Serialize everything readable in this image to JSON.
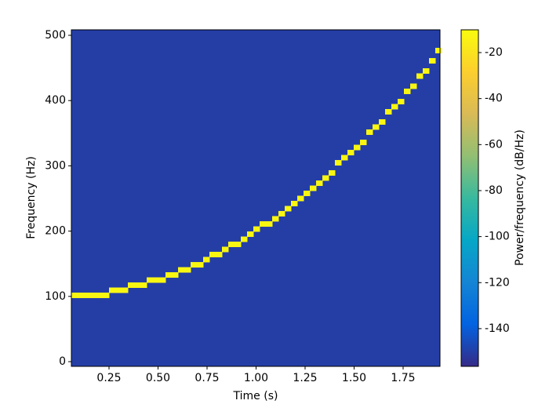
{
  "chart_data": {
    "type": "spectrogram",
    "xlabel": "Time (s)",
    "ylabel": "Frequency (Hz)",
    "colorbar_label": "Power/frequency (dB/Hz)",
    "colormap": "parula",
    "xlim": [
      0.058,
      1.938
    ],
    "ylim": [
      -7.2,
      508.4
    ],
    "clim": [
      -156.4,
      -10.1
    ],
    "xticks": [
      {
        "value": 0.25,
        "label": "0.25"
      },
      {
        "value": 0.5,
        "label": "0.50"
      },
      {
        "value": 0.75,
        "label": "0.75"
      },
      {
        "value": 1.0,
        "label": "1.00"
      },
      {
        "value": 1.25,
        "label": "1.25"
      },
      {
        "value": 1.5,
        "label": "1.50"
      },
      {
        "value": 1.75,
        "label": "1.75"
      }
    ],
    "yticks": [
      0,
      100,
      200,
      300,
      400,
      500
    ],
    "cticks": [
      -20,
      -40,
      -60,
      -80,
      -100,
      -120,
      -140
    ],
    "background_power": -150,
    "ridge_power": -12,
    "x": [
      0.074,
      0.106,
      0.138,
      0.17,
      0.202,
      0.234,
      0.266,
      0.298,
      0.33,
      0.362,
      0.394,
      0.426,
      0.458,
      0.49,
      0.522,
      0.554,
      0.586,
      0.618,
      0.65,
      0.682,
      0.714,
      0.746,
      0.778,
      0.81,
      0.842,
      0.874,
      0.906,
      0.938,
      0.97,
      1.002,
      1.034,
      1.066,
      1.098,
      1.13,
      1.162,
      1.194,
      1.226,
      1.258,
      1.29,
      1.322,
      1.354,
      1.386,
      1.418,
      1.45,
      1.482,
      1.514,
      1.546,
      1.578,
      1.61,
      1.642,
      1.674,
      1.706,
      1.738,
      1.77,
      1.802,
      1.834,
      1.866,
      1.898,
      1.93
    ],
    "values": [
      101.6,
      101.6,
      101.6,
      101.6,
      101.6,
      101.6,
      109.4,
      109.4,
      109.4,
      117.2,
      117.2,
      117.2,
      125.0,
      125.0,
      125.0,
      132.8,
      132.8,
      140.6,
      140.6,
      148.4,
      148.4,
      156.3,
      164.1,
      164.1,
      171.9,
      179.7,
      179.7,
      187.5,
      195.3,
      203.1,
      210.9,
      210.9,
      218.8,
      226.6,
      234.4,
      242.2,
      250.0,
      257.8,
      265.6,
      273.4,
      281.3,
      289.1,
      304.7,
      312.5,
      320.3,
      328.1,
      335.9,
      351.6,
      359.4,
      367.2,
      382.8,
      390.6,
      398.4,
      414.1,
      421.9,
      437.5,
      445.3,
      460.9,
      476.6
    ]
  }
}
